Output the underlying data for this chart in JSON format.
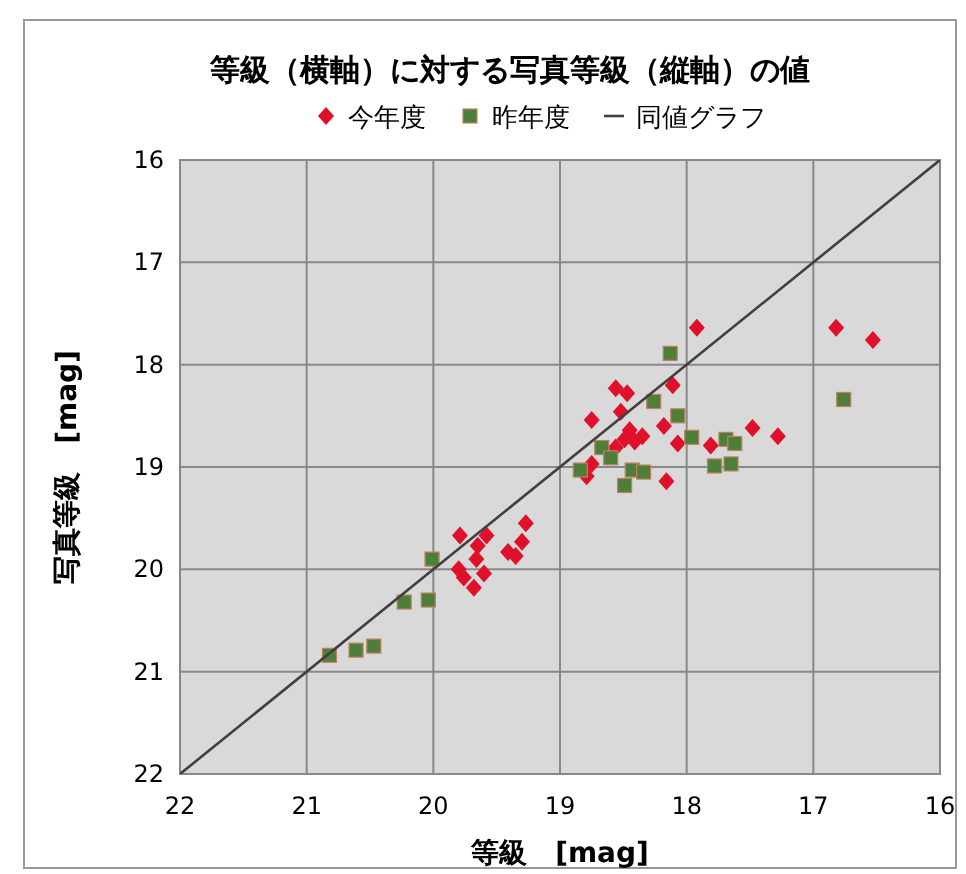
{
  "chart_data": {
    "type": "scatter",
    "title": "等級（横軸）に対する写真等級（縦軸）の値",
    "xlabel": "等級　[mag]",
    "ylabel": "写真等級　[mag]",
    "xlim": [
      22,
      16
    ],
    "ylim": [
      22,
      16
    ],
    "xticks": [
      22,
      21,
      20,
      19,
      18,
      17,
      16
    ],
    "yticks": [
      16,
      17,
      18,
      19,
      20,
      21,
      22
    ],
    "grid": true,
    "legend": "top",
    "series": [
      {
        "name": "今年度",
        "color": "#e0102a",
        "marker": "diamond",
        "x": [
          17.92,
          16.82,
          16.53,
          18.56,
          18.47,
          18.11,
          18.18,
          18.07,
          17.48,
          17.28,
          17.64,
          17.81,
          18.16,
          18.75,
          18.52,
          18.45,
          18.41,
          18.35,
          18.49,
          18.56,
          18.65,
          18.68,
          18.75,
          18.79,
          19.27,
          19.3,
          19.35,
          19.41,
          19.58,
          19.65,
          19.66,
          19.6,
          19.69,
          19.79,
          19.8,
          19.76,
          19.68
        ],
        "values": [
          17.64,
          17.64,
          17.76,
          18.23,
          18.28,
          18.2,
          18.6,
          18.77,
          18.62,
          18.7,
          null,
          18.79,
          19.14,
          18.54,
          18.46,
          18.64,
          18.75,
          18.7,
          18.73,
          18.81,
          null,
          null,
          18.97,
          19.09,
          19.55,
          19.73,
          19.87,
          19.83,
          19.67,
          19.77,
          19.9,
          20.04,
          null,
          19.67,
          20.0,
          20.08,
          20.18
        ]
      },
      {
        "name": "昨年度",
        "color": "#4e7f3a",
        "marker": "square",
        "x": [
          18.13,
          18.26,
          18.07,
          17.96,
          17.69,
          17.62,
          17.65,
          17.78,
          16.76,
          18.67,
          18.6,
          18.84,
          18.43,
          18.34,
          18.49,
          20.01,
          20.23,
          20.04,
          20.47,
          20.61,
          20.82
        ],
        "values": [
          17.89,
          18.36,
          18.5,
          18.71,
          18.73,
          18.77,
          18.97,
          18.99,
          18.34,
          18.81,
          18.91,
          19.03,
          19.03,
          19.05,
          19.18,
          19.9,
          20.32,
          20.3,
          20.75,
          20.79,
          20.84
        ]
      },
      {
        "name": "同値グラフ",
        "type": "line",
        "color": "#404040",
        "marker": "none",
        "x": [
          22,
          16
        ],
        "values": [
          22,
          16
        ]
      }
    ]
  }
}
